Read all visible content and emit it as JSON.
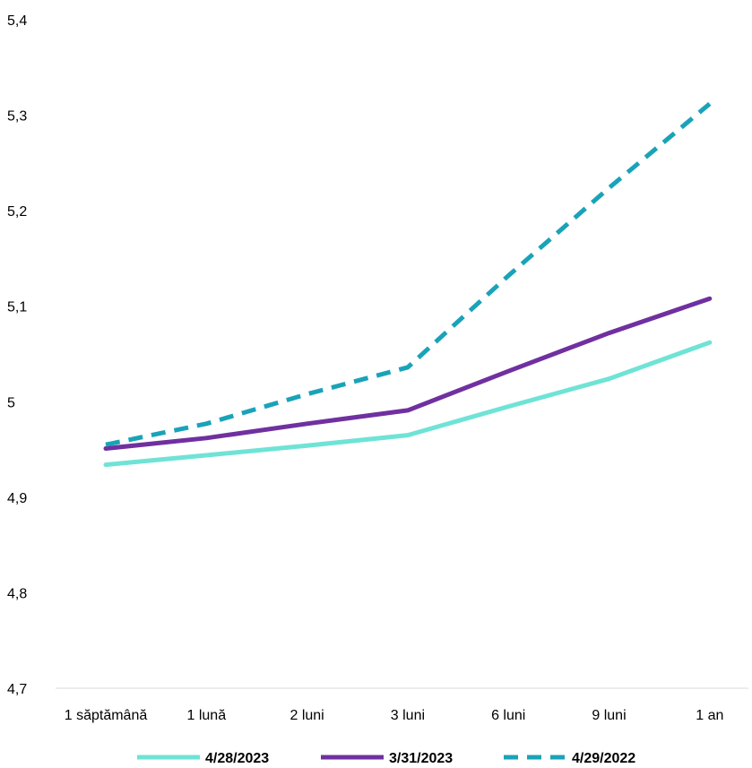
{
  "chart_data": {
    "type": "line",
    "categories": [
      "1 săptămână",
      "1 lună",
      "2 luni",
      "3 luni",
      "6 luni",
      "9 luni",
      "1 an"
    ],
    "y_ticks": [
      "4,7",
      "4,8",
      "4,9",
      "5",
      "5,1",
      "5,2",
      "5,3",
      "5,4"
    ],
    "ylim": [
      4.7,
      5.4
    ],
    "grid": false,
    "legend_position": "bottom",
    "series": [
      {
        "name": "4/28/2023",
        "values": [
          4.934,
          4.944,
          4.954,
          4.965,
          4.995,
          5.024,
          5.062
        ],
        "color": "#6EE3D6",
        "dash": "solid"
      },
      {
        "name": "3/31/2023",
        "values": [
          4.951,
          4.962,
          4.977,
          4.991,
          5.032,
          5.072,
          5.108
        ],
        "color": "#7030A0",
        "dash": "solid"
      },
      {
        "name": "4/29/2022",
        "values": [
          4.955,
          4.977,
          5.008,
          5.036,
          5.132,
          5.224,
          5.312
        ],
        "color": "#1AA3B8",
        "dash": "dashed"
      }
    ]
  }
}
